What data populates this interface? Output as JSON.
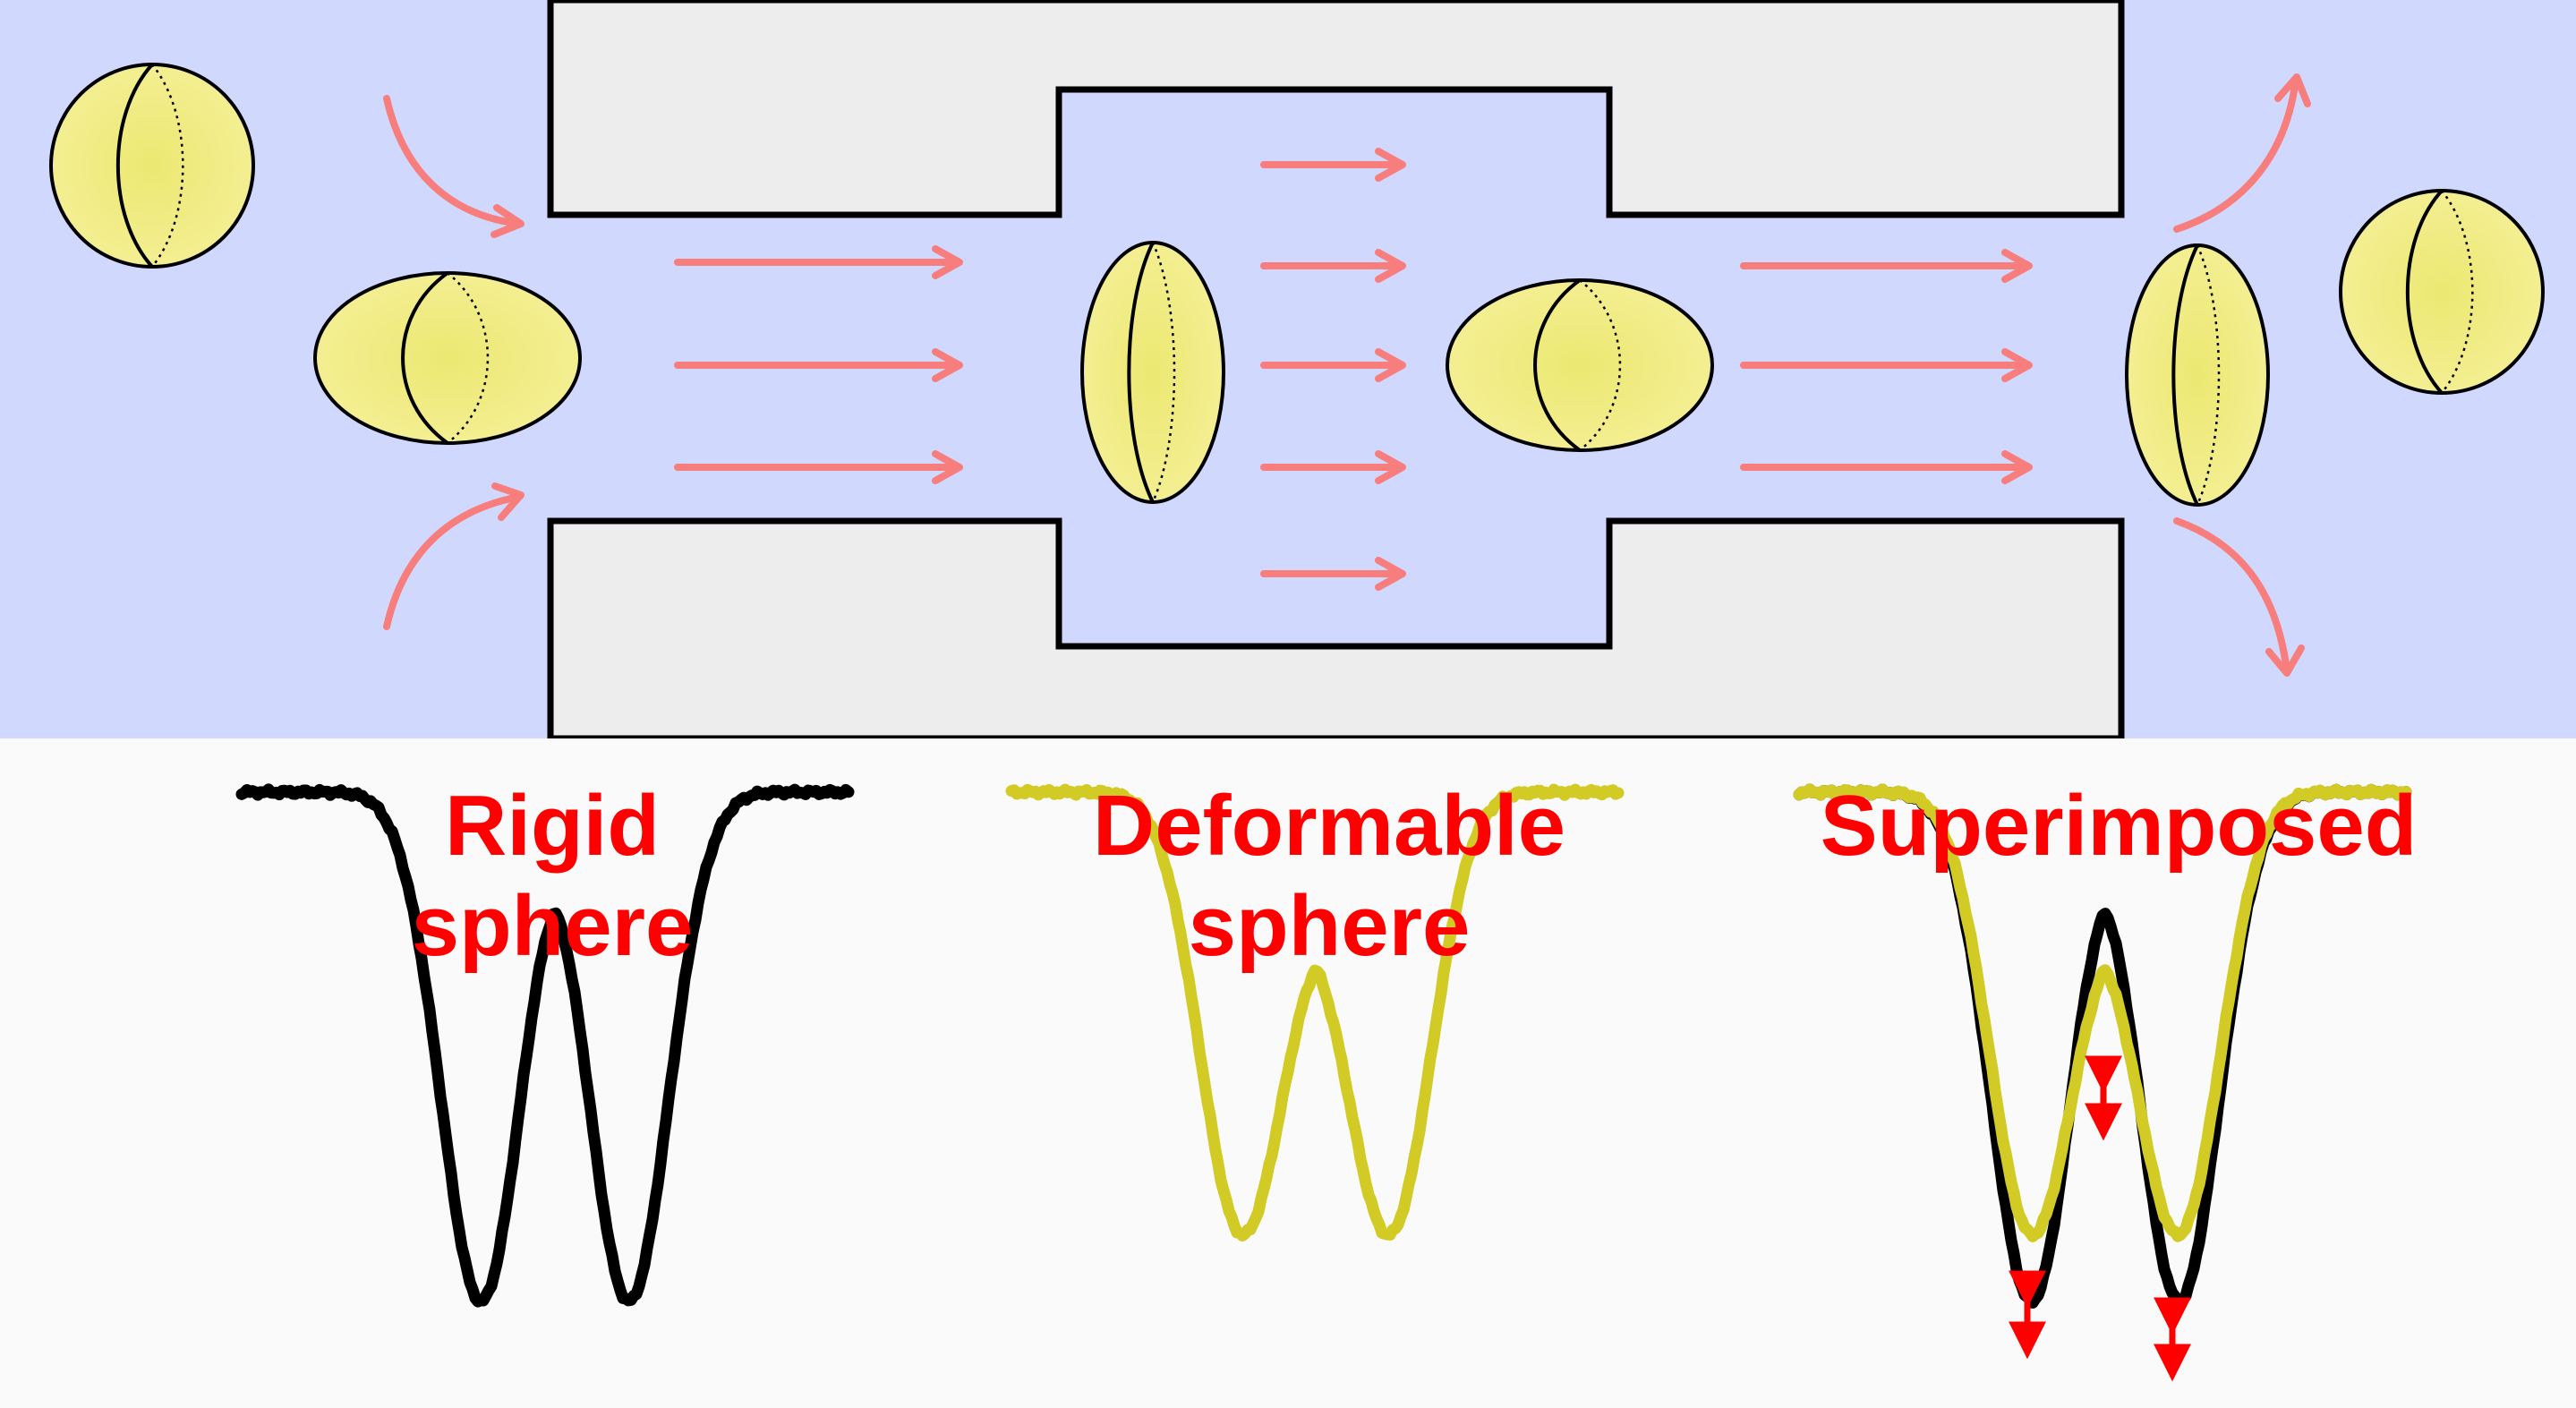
{
  "figure": {
    "background_colors": {
      "channel_fluid": "#d1d8fd",
      "channel_wall": "#ededed",
      "lower_panel": "#fafafa",
      "flow_arrow": "#f87d7d",
      "cell_fill": "#efe87e",
      "rigid_trace": "#000000",
      "deformable_trace": "#d2ca25",
      "label": "#ff0000",
      "marker_arrow": "#ff0000"
    },
    "panels": [
      {
        "id": "rigid",
        "title_line1": "Rigid",
        "title_line2": "sphere"
      },
      {
        "id": "deformable",
        "title_line1": "Deformable",
        "title_line2": "sphere"
      },
      {
        "id": "superimposed",
        "title_line1": "Superimposed",
        "title_line2": ""
      }
    ],
    "icons": {
      "cell": "ellipsoid-cell-icon",
      "flow": "flow-arrow-icon",
      "marker": "double-arrow-marker-icon"
    }
  }
}
